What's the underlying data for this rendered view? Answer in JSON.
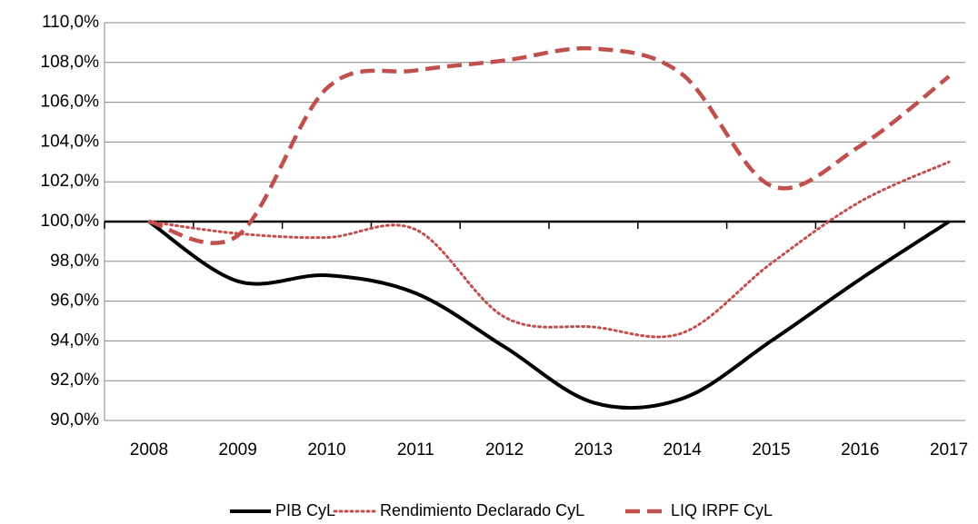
{
  "chart_data": {
    "type": "line",
    "categories": [
      "2008",
      "2009",
      "2010",
      "2011",
      "2012",
      "2013",
      "2014",
      "2015",
      "2016",
      "2017"
    ],
    "series": [
      {
        "name": "PIB CyL",
        "color": "#000000",
        "dash": "solid",
        "values": [
          100,
          97.0,
          97.3,
          96.4,
          93.7,
          90.9,
          91.1,
          94.0,
          97.1,
          100
        ]
      },
      {
        "name": "Rendimiento Declarado CyL",
        "color": "#c0504d",
        "dash": "dotted",
        "values": [
          100,
          99.4,
          99.2,
          99.6,
          95.2,
          94.7,
          94.4,
          97.9,
          101.0,
          103.0
        ]
      },
      {
        "name": "LIQ IRPF CyL",
        "color": "#c0504d",
        "dash": "dashed",
        "values": [
          100,
          99.3,
          106.7,
          107.6,
          108.1,
          108.7,
          107.4,
          101.8,
          103.8,
          107.3
        ]
      }
    ],
    "ylim": [
      90,
      110
    ],
    "yticks": [
      {
        "value": 90,
        "label": "90,0%"
      },
      {
        "value": 92,
        "label": "92,0%"
      },
      {
        "value": 94,
        "label": "94,0%"
      },
      {
        "value": 96,
        "label": "96,0%"
      },
      {
        "value": 98,
        "label": "98,0%"
      },
      {
        "value": 100,
        "label": "100,0%"
      },
      {
        "value": 102,
        "label": "102,0%"
      },
      {
        "value": 104,
        "label": "104,0%"
      },
      {
        "value": 106,
        "label": "106,0%"
      },
      {
        "value": 108,
        "label": "108,0%"
      },
      {
        "value": 110,
        "label": "110,0%"
      }
    ],
    "grid": true,
    "xaxis_at": 100,
    "smooth": true,
    "legend": "bottom"
  }
}
